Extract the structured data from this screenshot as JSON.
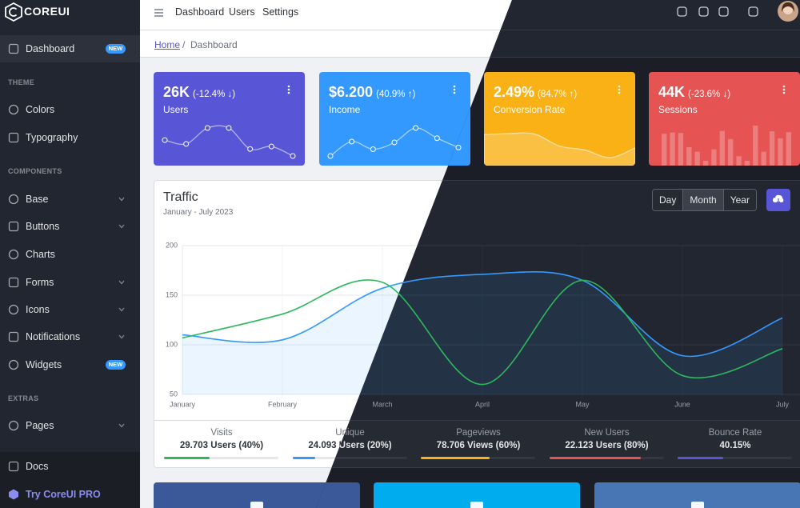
{
  "brand": "COREUI",
  "sidebar": {
    "top": {
      "label": "Dashboard",
      "badge": "NEW"
    },
    "sections": [
      {
        "title": "THEME",
        "items": [
          {
            "label": "Colors"
          },
          {
            "label": "Typography"
          }
        ]
      },
      {
        "title": "COMPONENTS",
        "items": [
          {
            "label": "Base",
            "expandable": true
          },
          {
            "label": "Buttons",
            "expandable": true
          },
          {
            "label": "Charts"
          },
          {
            "label": "Forms",
            "expandable": true
          },
          {
            "label": "Icons",
            "expandable": true
          },
          {
            "label": "Notifications",
            "expandable": true
          },
          {
            "label": "Widgets",
            "badge": "NEW"
          }
        ]
      },
      {
        "title": "EXTRAS",
        "items": [
          {
            "label": "Pages",
            "expandable": true
          }
        ]
      }
    ],
    "bottom": [
      {
        "label": "Docs"
      },
      {
        "label": "Try CoreUI PRO"
      }
    ]
  },
  "header": {
    "nav": [
      "Dashboard",
      "Users",
      "Settings"
    ]
  },
  "breadcrumb": {
    "items": [
      "Home",
      "Dashboard"
    ],
    "separator": "/"
  },
  "widgets": [
    {
      "value": "26K",
      "change": "(-12.4% ↓)",
      "label": "Users",
      "color": "#5856d6",
      "chart": "line",
      "data": [
        65,
        59,
        84,
        84,
        51,
        55,
        40
      ]
    },
    {
      "value": "$6.200",
      "change": "(40.9% ↑)",
      "label": "Income",
      "color": "#3399ff",
      "chart": "line",
      "data": [
        1,
        18,
        9,
        17,
        34,
        22,
        11
      ]
    },
    {
      "value": "2.49%",
      "change": "(84.7% ↑)",
      "label": "Conversion Rate",
      "color": "#f9b115",
      "chart": "area",
      "data": [
        78,
        81,
        80,
        45,
        34,
        12,
        40
      ]
    },
    {
      "value": "44K",
      "change": "(-23.6% ↓)",
      "label": "Sessions",
      "color": "#e55353",
      "chart": "bar",
      "data": [
        78,
        81,
        80,
        45,
        34,
        12,
        40,
        85,
        65,
        23,
        12,
        98,
        34,
        84,
        67,
        82
      ]
    }
  ],
  "traffic": {
    "title": "Traffic",
    "subtitle": "January - July 2023",
    "buttons": [
      "Day",
      "Month",
      "Year"
    ],
    "active_button": 1,
    "type": "line",
    "categories": [
      "January",
      "February",
      "March",
      "April",
      "May",
      "June",
      "July"
    ],
    "series": [
      {
        "color": "#3399ff",
        "fill": true,
        "values": [
          110,
          105,
          157,
          171,
          165,
          89,
          127
        ]
      },
      {
        "color": "#2eb85c",
        "fill": false,
        "values": [
          107,
          131,
          163,
          60,
          165,
          69,
          96
        ]
      }
    ],
    "ylim": [
      50,
      200
    ],
    "yticks": [
      50,
      100,
      150,
      200
    ],
    "grid": true,
    "stats": [
      {
        "label": "Visits",
        "value": "29.703 Users (40%)",
        "progress": 40,
        "color": "#2eb85c"
      },
      {
        "label": "Unique",
        "value": "24.093 Users (20%)",
        "progress": 20,
        "color": "#3399ff"
      },
      {
        "label": "Pageviews",
        "value": "78.706 Views (60%)",
        "progress": 60,
        "color": "#f9b115"
      },
      {
        "label": "New Users",
        "value": "22.123 Users (80%)",
        "progress": 80,
        "color": "#e55353"
      },
      {
        "label": "Bounce Rate",
        "value": "40.15%",
        "progress": 40.15,
        "color": "#5856d6"
      }
    ]
  },
  "social": [
    {
      "color": "#3b5998"
    },
    {
      "color": "#00aced"
    },
    {
      "color": "#4875b4"
    }
  ]
}
